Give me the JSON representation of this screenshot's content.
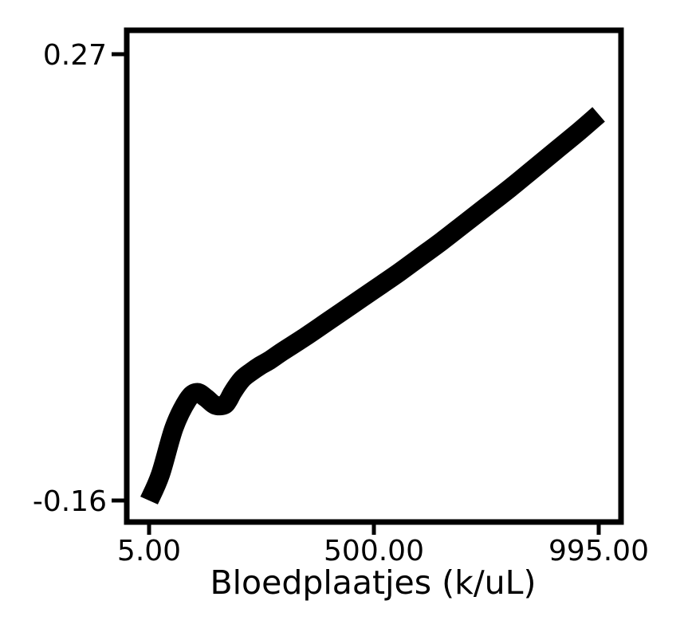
{
  "chart_data": {
    "type": "line",
    "title": "",
    "xlabel": "Bloedplaatjes (k/uL)",
    "ylabel": "",
    "xlim": [
      5.0,
      995.0
    ],
    "ylim": [
      -0.16,
      0.27
    ],
    "x_ticks": [
      {
        "value": 5.0,
        "label": "5.00"
      },
      {
        "value": 500.0,
        "label": "500.00"
      },
      {
        "value": 995.0,
        "label": "995.00"
      }
    ],
    "y_ticks": [
      {
        "value": 0.27,
        "label": "0.27"
      },
      {
        "value": -0.16,
        "label": "-0.16"
      }
    ],
    "grid": false,
    "series": [
      {
        "color": "#000000",
        "x": [
          5,
          30,
          60,
          90,
          110,
          130,
          150,
          170,
          180,
          190,
          210,
          230,
          250,
          270,
          300,
          350,
          400,
          450,
          500,
          550,
          600,
          650,
          700,
          750,
          800,
          850,
          900,
          950,
          995
        ],
        "y": [
          -0.16,
          -0.135,
          -0.09,
          -0.063,
          -0.056,
          -0.061,
          -0.068,
          -0.068,
          -0.063,
          -0.055,
          -0.043,
          -0.036,
          -0.03,
          -0.025,
          -0.016,
          -0.002,
          0.013,
          0.028,
          0.043,
          0.058,
          0.074,
          0.09,
          0.107,
          0.124,
          0.141,
          0.159,
          0.177,
          0.195,
          0.212
        ]
      }
    ]
  }
}
